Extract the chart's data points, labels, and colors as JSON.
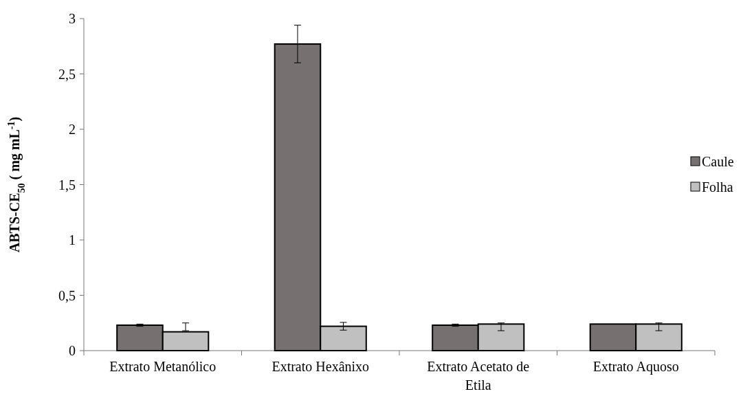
{
  "chart_data": {
    "type": "bar",
    "ylabel": "ABTS-CE$_{50}$ ( mg mL$^{-1}$)",
    "categories": [
      "Extrato  Metanólico",
      "Extrato Hexânixo",
      "Extrato Acetato de Etila",
      "Extrato Aquoso"
    ],
    "series": [
      {
        "name": "Caule",
        "color": "#767170",
        "values": [
          0.23,
          2.77,
          0.23,
          0.24
        ],
        "errors": [
          0.01,
          0.17,
          0.01,
          null
        ]
      },
      {
        "name": "Folha",
        "color": "#c0c0c0",
        "values": [
          0.17,
          0.22,
          0.24,
          0.24
        ],
        "errors": [
          [
            0.18,
            0.25
          ],
          0.035,
          [
            0.18,
            0.25
          ],
          [
            0.18,
            0.25
          ]
        ]
      }
    ],
    "ylim": [
      0,
      3
    ],
    "yticks": [
      0,
      {
        "value": 0.5,
        "label": "0,5"
      },
      1,
      {
        "value": 1.5,
        "label": "1,5"
      },
      2,
      {
        "value": 2.5,
        "label": "2,5"
      },
      3
    ],
    "grid": false,
    "legend": "right"
  }
}
